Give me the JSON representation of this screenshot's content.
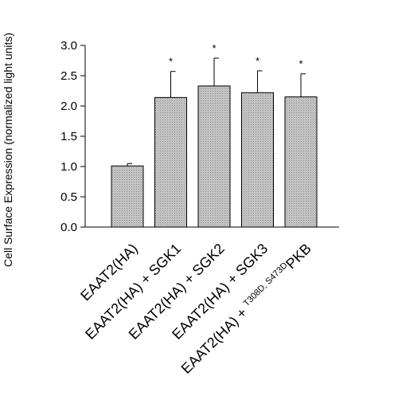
{
  "chart_data": {
    "type": "bar",
    "ylabel": "Cell Surface Expression (normalized light units)",
    "ylim": [
      0,
      3.0
    ],
    "yticks": [
      0.0,
      0.5,
      1.0,
      1.5,
      2.0,
      2.5,
      3.0
    ],
    "ytick_labels": [
      "0.0",
      "0.5",
      "1.0",
      "1.5",
      "2.0",
      "2.5",
      "3.0"
    ],
    "categories": [
      {
        "label": "EAAT2(HA)"
      },
      {
        "label": "EAAT2(HA) + SGK1"
      },
      {
        "label": "EAAT2(HA) + SGK2"
      },
      {
        "label": "EAAT2(HA) + SGK3"
      },
      {
        "label": "EAAT2(HA) + ",
        "sup": "T308D, S473D",
        "suffix": "PKB"
      }
    ],
    "values": [
      1.01,
      2.14,
      2.33,
      2.22,
      2.15
    ],
    "errors": [
      0.04,
      0.43,
      0.46,
      0.36,
      0.38
    ],
    "significance": [
      "",
      "*",
      "*",
      "*",
      "*"
    ],
    "bar_fill": "#c8c8c8",
    "grid": false,
    "legend": "none"
  }
}
